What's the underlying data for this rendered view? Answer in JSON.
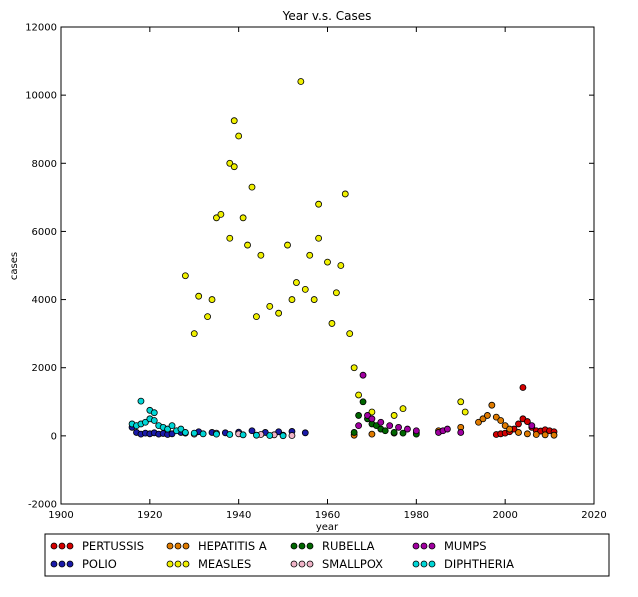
{
  "chart_data": {
    "type": "scatter",
    "title": "Year v.s. Cases",
    "xlabel": "year",
    "ylabel": "cases",
    "xlim": [
      1900,
      2020
    ],
    "ylim": [
      -2000,
      12000
    ],
    "xticks": [
      1900,
      1920,
      1940,
      1960,
      1980,
      2000,
      2020
    ],
    "yticks": [
      -2000,
      0,
      2000,
      4000,
      6000,
      8000,
      10000,
      12000
    ],
    "grid": false,
    "legend_position": "bottom-center",
    "series": [
      {
        "name": "PERTUSSIS",
        "color": "#d40000",
        "x": [
          1998,
          1999,
          2000,
          2001,
          2002,
          2003,
          2004,
          2004,
          2005,
          2006,
          2007,
          2008,
          2009,
          2010,
          2011
        ],
        "y": [
          40,
          60,
          80,
          120,
          200,
          350,
          1420,
          500,
          420,
          250,
          150,
          140,
          180,
          150,
          120
        ]
      },
      {
        "name": "POLIO",
        "color": "#1a1aa8",
        "x": [
          1916,
          1917,
          1918,
          1919,
          1920,
          1921,
          1922,
          1923,
          1924,
          1925,
          1927,
          1928,
          1931,
          1934,
          1937,
          1940,
          1943,
          1946,
          1949,
          1952,
          1955
        ],
        "y": [
          250,
          100,
          50,
          80,
          60,
          90,
          50,
          70,
          40,
          60,
          100,
          80,
          120,
          100,
          90,
          110,
          150,
          100,
          120,
          130,
          90
        ]
      },
      {
        "name": "HEPATITIS A",
        "color": "#e07b00",
        "x": [
          1966,
          1970,
          1975,
          1980,
          1985,
          1990,
          1994,
          1995,
          1996,
          1997,
          1998,
          1999,
          2000,
          2001,
          2003,
          2005,
          2007,
          2009,
          2011
        ],
        "y": [
          20,
          50,
          80,
          100,
          150,
          250,
          400,
          500,
          600,
          900,
          550,
          450,
          300,
          200,
          100,
          60,
          40,
          30,
          20
        ]
      },
      {
        "name": "MEASLES",
        "color": "#f0f000",
        "x": [
          1928,
          1930,
          1931,
          1933,
          1934,
          1935,
          1936,
          1938,
          1938,
          1939,
          1939,
          1940,
          1941,
          1942,
          1943,
          1944,
          1945,
          1947,
          1949,
          1951,
          1952,
          1953,
          1954,
          1955,
          1956,
          1957,
          1958,
          1958,
          1960,
          1961,
          1962,
          1963,
          1964,
          1965,
          1966,
          1967,
          1970,
          1975,
          1977,
          1990,
          1991
        ],
        "y": [
          4700,
          3000,
          4100,
          3500,
          4000,
          6400,
          6500,
          5800,
          8000,
          7900,
          9250,
          8800,
          6400,
          5600,
          7300,
          3500,
          5300,
          3800,
          3600,
          5600,
          4000,
          4500,
          10400,
          4300,
          5300,
          4000,
          5800,
          6800,
          5100,
          3300,
          4200,
          5000,
          7100,
          3000,
          2000,
          1200,
          700,
          600,
          800,
          1000,
          700
        ]
      },
      {
        "name": "RUBELLA",
        "color": "#006600",
        "x": [
          1966,
          1967,
          1968,
          1969,
          1970,
          1971,
          1972,
          1973,
          1975,
          1977,
          1980
        ],
        "y": [
          100,
          600,
          1000,
          500,
          350,
          300,
          200,
          150,
          100,
          80,
          50
        ]
      },
      {
        "name": "SMALLPOX",
        "color": "#f0b4c8",
        "x": [
          1930,
          1935,
          1940,
          1945,
          1948,
          1950,
          1952
        ],
        "y": [
          50,
          80,
          60,
          40,
          30,
          20,
          10
        ]
      },
      {
        "name": "MUMPS",
        "color": "#a000a0",
        "x": [
          1967,
          1968,
          1969,
          1970,
          1972,
          1974,
          1976,
          1978,
          1980,
          1985,
          1986,
          1987,
          1990,
          2006
        ],
        "y": [
          300,
          1780,
          600,
          500,
          400,
          300,
          250,
          200,
          150,
          100,
          150,
          200,
          100,
          300
        ]
      },
      {
        "name": "DIPHTHERIA",
        "color": "#00d6d6",
        "x": [
          1916,
          1917,
          1918,
          1918,
          1919,
          1920,
          1920,
          1921,
          1921,
          1922,
          1923,
          1924,
          1925,
          1926,
          1927,
          1928,
          1930,
          1932,
          1935,
          1938,
          1941,
          1944,
          1947,
          1950
        ],
        "y": [
          350,
          300,
          350,
          1020,
          400,
          750,
          500,
          680,
          450,
          300,
          250,
          200,
          300,
          150,
          200,
          100,
          80,
          60,
          50,
          40,
          30,
          20,
          10,
          5
        ]
      }
    ]
  }
}
